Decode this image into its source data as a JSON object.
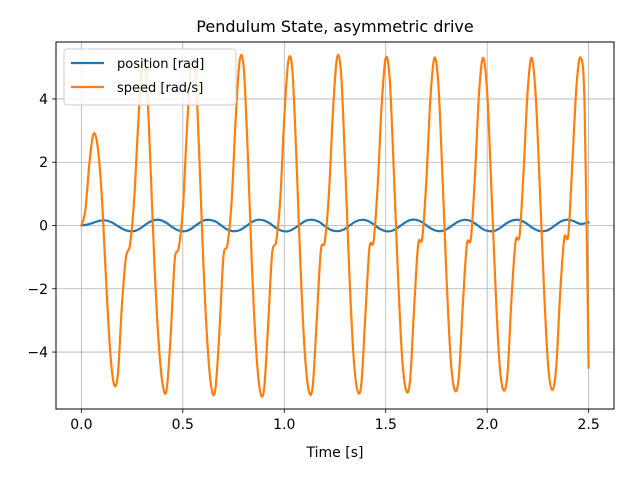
{
  "chart_data": {
    "type": "line",
    "title": "Pendulum State, asymmetric drive",
    "xlabel": "Time [s]",
    "ylabel": "",
    "xlim": [
      -0.125,
      2.625
    ],
    "ylim": [
      -5.8,
      5.8
    ],
    "xticks": [
      0.0,
      0.5,
      1.0,
      1.5,
      2.0,
      2.5
    ],
    "xtick_labels": [
      "0.0",
      "0.5",
      "1.0",
      "1.5",
      "2.0",
      "2.5"
    ],
    "yticks": [
      -4,
      -2,
      0,
      2,
      4
    ],
    "ytick_labels": [
      "−4",
      "−2",
      "0",
      "2",
      "4"
    ],
    "grid": true,
    "legend_position": "top-left",
    "series": [
      {
        "name": "position [rad]",
        "color": "#1f77b4",
        "x": [
          0.0,
          0.03,
          0.06,
          0.09,
          0.12,
          0.15,
          0.18,
          0.21,
          0.24,
          0.27,
          0.3,
          0.33,
          0.36,
          0.39,
          0.42,
          0.45,
          0.48,
          0.51,
          0.54,
          0.57,
          0.6,
          0.63,
          0.66,
          0.69,
          0.72,
          0.75,
          0.78,
          0.81,
          0.84,
          0.87,
          0.9,
          0.93,
          0.96,
          0.99,
          1.02,
          1.05,
          1.08,
          1.11,
          1.14,
          1.17,
          1.2,
          1.23,
          1.26,
          1.29,
          1.32,
          1.35,
          1.38,
          1.41,
          1.44,
          1.47,
          1.5,
          1.53,
          1.56,
          1.59,
          1.62,
          1.65,
          1.68,
          1.71,
          1.74,
          1.77,
          1.8,
          1.83,
          1.86,
          1.89,
          1.92,
          1.95,
          1.98,
          2.01,
          2.04,
          2.07,
          2.1,
          2.13,
          2.16,
          2.19,
          2.22,
          2.25,
          2.28,
          2.31,
          2.34,
          2.37,
          2.4,
          2.43,
          2.46,
          2.5
        ],
        "y": [
          0.0,
          0.03,
          0.09,
          0.15,
          0.16,
          0.1,
          -0.02,
          -0.13,
          -0.18,
          -0.16,
          -0.05,
          0.09,
          0.17,
          0.17,
          0.08,
          -0.06,
          -0.16,
          -0.18,
          -0.11,
          0.03,
          0.15,
          0.18,
          0.13,
          0.0,
          -0.13,
          -0.18,
          -0.15,
          -0.03,
          0.11,
          0.18,
          0.16,
          0.06,
          -0.08,
          -0.17,
          -0.18,
          -0.09,
          0.05,
          0.16,
          0.18,
          0.12,
          -0.02,
          -0.14,
          -0.18,
          -0.14,
          -0.01,
          0.12,
          0.18,
          0.15,
          0.04,
          -0.1,
          -0.18,
          -0.17,
          -0.07,
          0.07,
          0.17,
          0.18,
          0.1,
          -0.04,
          -0.15,
          -0.18,
          -0.12,
          0.01,
          0.13,
          0.18,
          0.14,
          0.02,
          -0.12,
          -0.18,
          -0.16,
          -0.05,
          0.09,
          0.17,
          0.17,
          0.08,
          -0.06,
          -0.16,
          -0.18,
          -0.11,
          0.03,
          0.15,
          0.18,
          0.13,
          0.05,
          0.1
        ]
      },
      {
        "name": "speed [rad/s]",
        "color": "#ff7f0e",
        "x": [
          0.0,
          0.02,
          0.04,
          0.06,
          0.08,
          0.1,
          0.12,
          0.14,
          0.16,
          0.18,
          0.2,
          0.22,
          0.24,
          0.26,
          0.28,
          0.3,
          0.32,
          0.34,
          0.36,
          0.38,
          0.4,
          0.42,
          0.44,
          0.46,
          0.48,
          0.5,
          0.52,
          0.54,
          0.56,
          0.58,
          0.6,
          0.62,
          0.64,
          0.66,
          0.68,
          0.7,
          0.72,
          0.74,
          0.76,
          0.78,
          0.8,
          0.82,
          0.84,
          0.86,
          0.88,
          0.9,
          0.92,
          0.94,
          0.96,
          0.98,
          1.0,
          1.02,
          1.04,
          1.06,
          1.08,
          1.1,
          1.12,
          1.14,
          1.16,
          1.18,
          1.2,
          1.22,
          1.24,
          1.26,
          1.28,
          1.3,
          1.32,
          1.34,
          1.36,
          1.38,
          1.4,
          1.42,
          1.44,
          1.46,
          1.48,
          1.5,
          1.52,
          1.54,
          1.56,
          1.58,
          1.6,
          1.62,
          1.64,
          1.66,
          1.68,
          1.7,
          1.72,
          1.74,
          1.76,
          1.78,
          1.8,
          1.82,
          1.84,
          1.86,
          1.88,
          1.9,
          1.92,
          1.94,
          1.96,
          1.98,
          2.0,
          2.02,
          2.04,
          2.06,
          2.08,
          2.1,
          2.12,
          2.14,
          2.16,
          2.18,
          2.2,
          2.22,
          2.24,
          2.26,
          2.28,
          2.3,
          2.32,
          2.34,
          2.36,
          2.38,
          2.4,
          2.42,
          2.44,
          2.46,
          2.48,
          2.5
        ],
        "y": [
          0.0,
          0.5,
          2.0,
          2.9,
          2.5,
          1.0,
          -1.5,
          -3.8,
          -5.0,
          -4.7,
          -2.5,
          -1.0,
          -0.6,
          0.8,
          3.2,
          5.1,
          4.8,
          2.0,
          -1.2,
          -3.6,
          -5.0,
          -5.2,
          -3.5,
          -1.1,
          -0.7,
          0.5,
          3.0,
          5.0,
          5.1,
          2.4,
          -1.0,
          -3.6,
          -5.1,
          -5.2,
          -3.4,
          -1.0,
          -0.6,
          0.7,
          3.3,
          5.2,
          5.0,
          2.3,
          -1.2,
          -3.8,
          -5.2,
          -5.2,
          -3.2,
          -0.9,
          -0.5,
          0.8,
          3.4,
          5.2,
          4.9,
          2.1,
          -1.3,
          -3.9,
          -5.2,
          -5.1,
          -3.0,
          -0.8,
          -0.5,
          1.0,
          3.6,
          5.3,
          4.8,
          1.9,
          -1.4,
          -4.0,
          -5.2,
          -5.0,
          -2.8,
          -0.7,
          -0.5,
          1.2,
          3.8,
          5.3,
          4.6,
          1.7,
          -1.5,
          -4.1,
          -5.2,
          -4.9,
          -2.6,
          -0.6,
          -0.4,
          1.4,
          4.0,
          5.3,
          4.4,
          1.5,
          -1.7,
          -4.2,
          -5.2,
          -4.8,
          -2.5,
          -0.6,
          -0.4,
          1.6,
          4.2,
          5.3,
          4.2,
          1.3,
          -1.8,
          -4.3,
          -5.2,
          -4.7,
          -2.3,
          -0.5,
          -0.3,
          1.8,
          4.3,
          5.3,
          4.0,
          1.1,
          -2.0,
          -4.4,
          -5.2,
          -4.5,
          -2.1,
          -0.4,
          -0.3,
          2.0,
          4.4,
          5.3,
          3.8,
          -4.5
        ]
      }
    ]
  }
}
